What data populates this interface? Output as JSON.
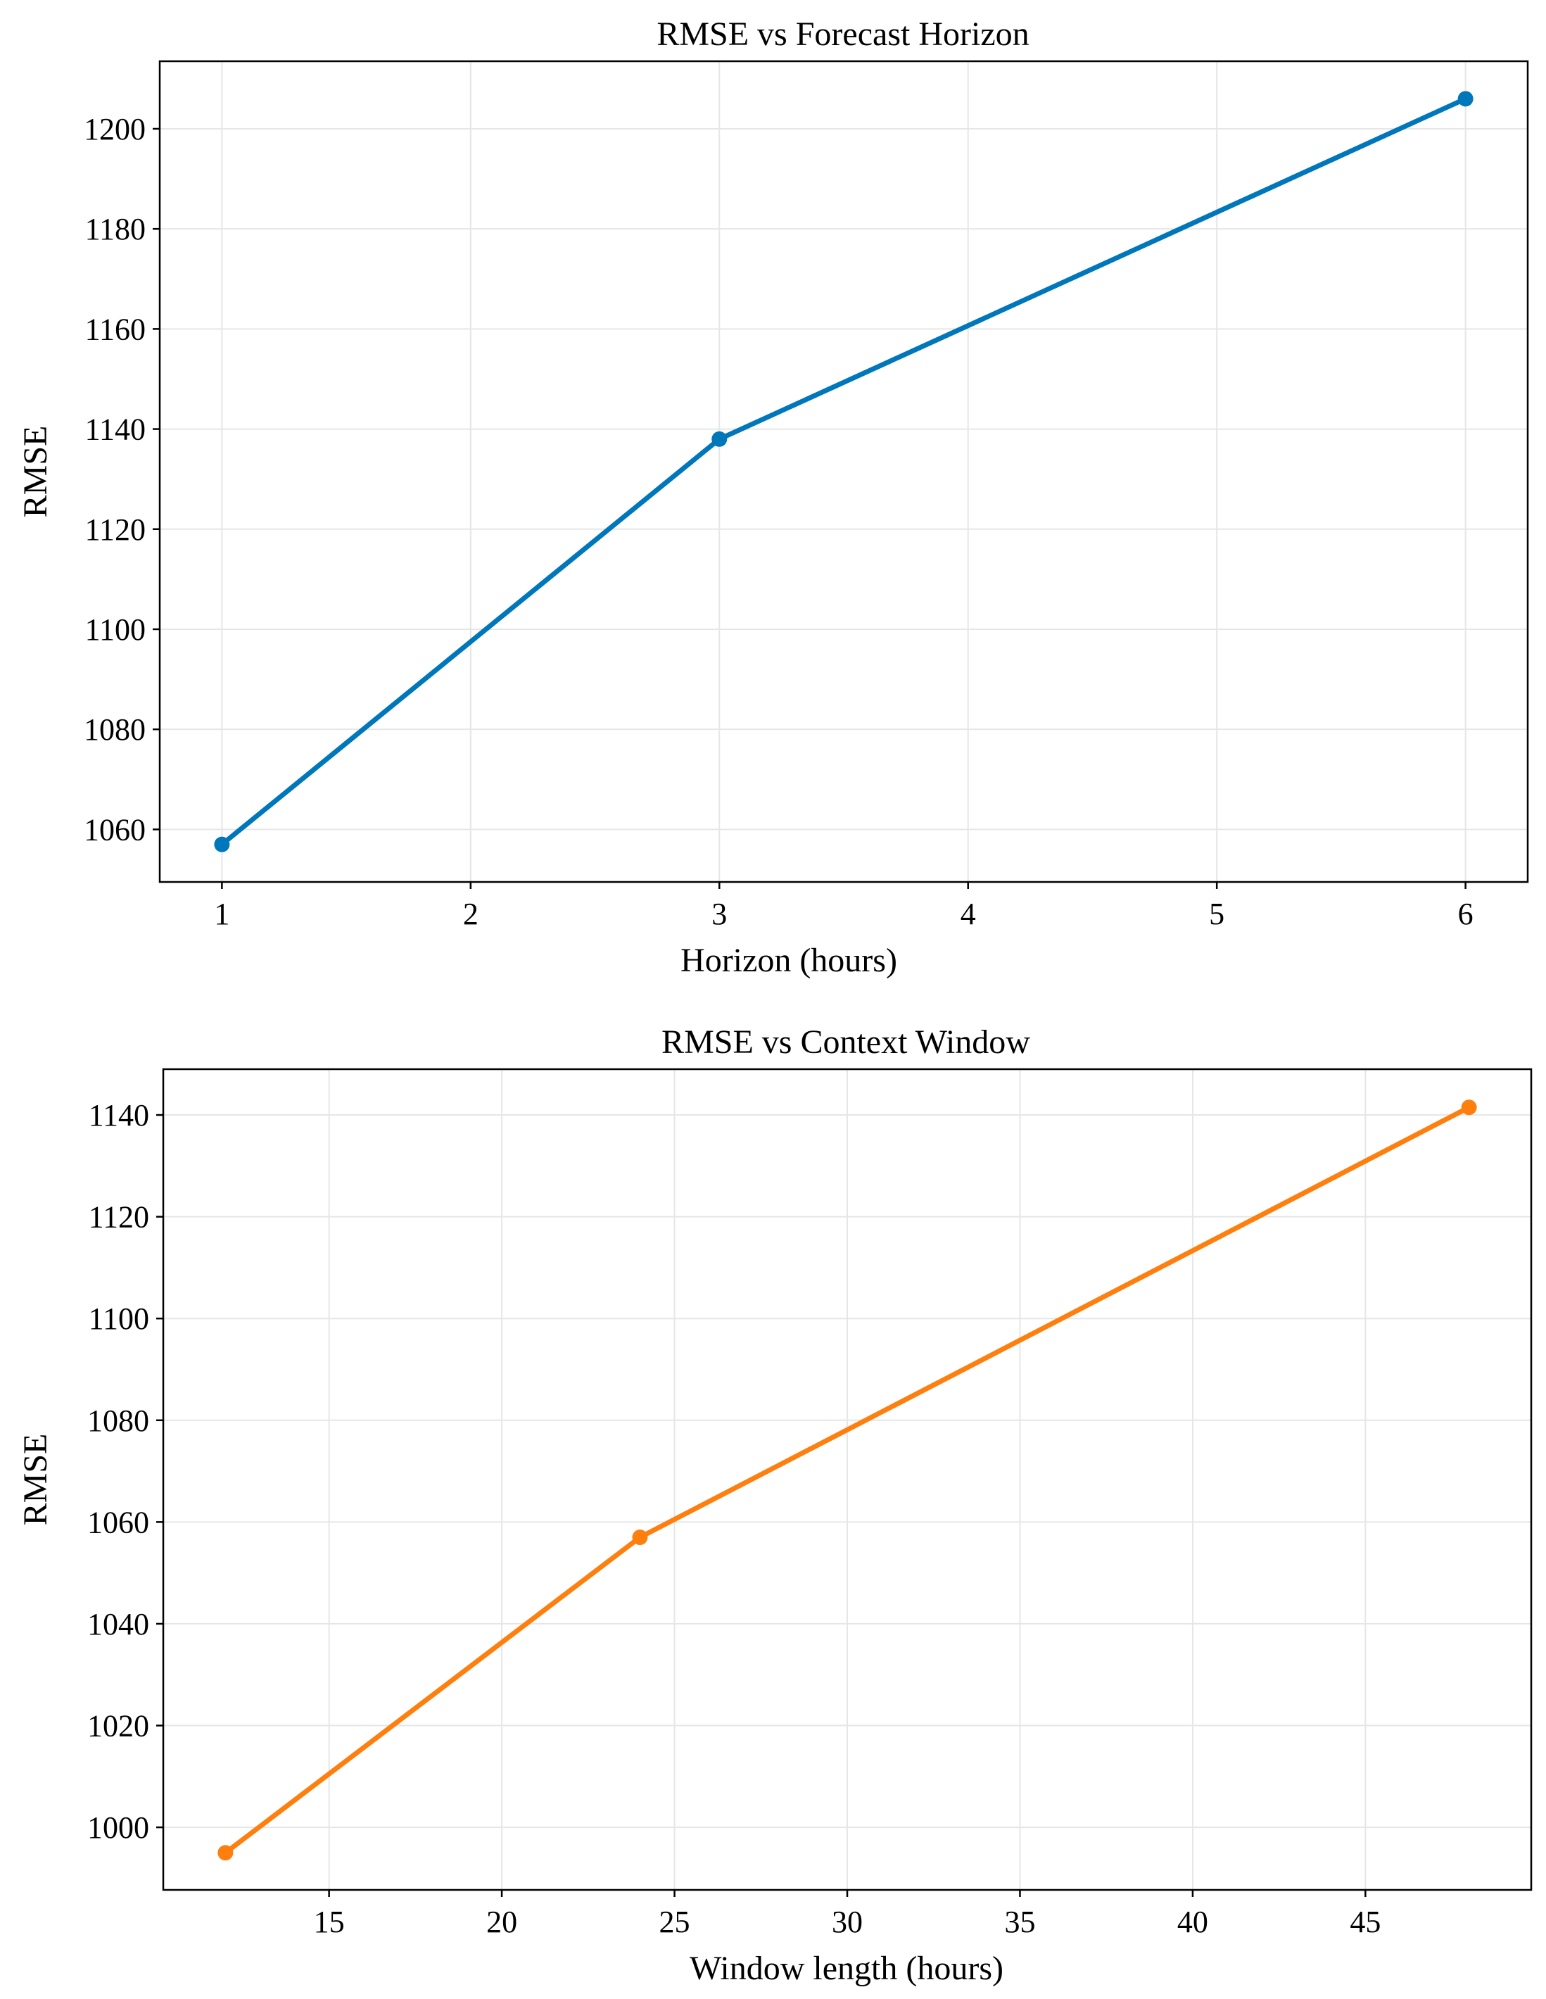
{
  "chart_data": [
    {
      "type": "line",
      "title": "RMSE vs Forecast Horizon",
      "xlabel": "Horizon (hours)",
      "ylabel": "RMSE",
      "x": [
        1,
        3,
        6
      ],
      "series": [
        {
          "values": [
            1057,
            1138,
            1206
          ],
          "color": "#0077bb"
        }
      ],
      "xlim": [
        0.75,
        6.25
      ],
      "ylim": [
        1049.5,
        1213.5
      ],
      "xticks": [
        1,
        2,
        3,
        4,
        5,
        6
      ],
      "yticks": [
        1060,
        1080,
        1100,
        1120,
        1140,
        1160,
        1180,
        1200
      ],
      "grid": true,
      "marker": "circle"
    },
    {
      "type": "line",
      "title": "RMSE vs Context Window",
      "xlabel": "Window length (hours)",
      "ylabel": "RMSE",
      "x": [
        12,
        24,
        48
      ],
      "series": [
        {
          "values": [
            995,
            1057,
            1141.5
          ],
          "color": "#ff7f0e"
        }
      ],
      "xlim": [
        10.2,
        49.8
      ],
      "ylim": [
        987.7,
        1149
      ],
      "xticks": [
        15,
        20,
        25,
        30,
        35,
        40,
        45
      ],
      "yticks": [
        1000,
        1020,
        1040,
        1060,
        1080,
        1100,
        1120,
        1140
      ],
      "grid": true,
      "marker": "circle"
    }
  ]
}
